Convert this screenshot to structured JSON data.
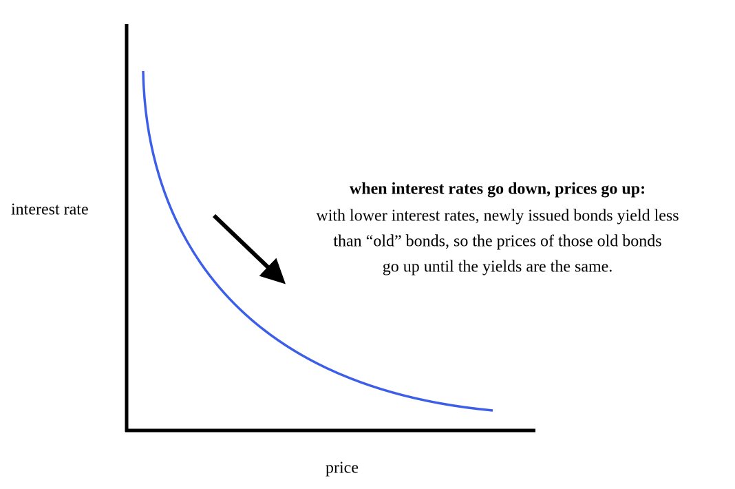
{
  "axes": {
    "y_label": "interest rate",
    "x_label": "price"
  },
  "annotation": {
    "heading": "when interest rates go down, prices go up:",
    "lines": [
      "with lower interest rates, newly issued bonds yield less",
      "than “old” bonds, so the prices of those old bonds",
      "go up until the yields are the same."
    ]
  }
}
